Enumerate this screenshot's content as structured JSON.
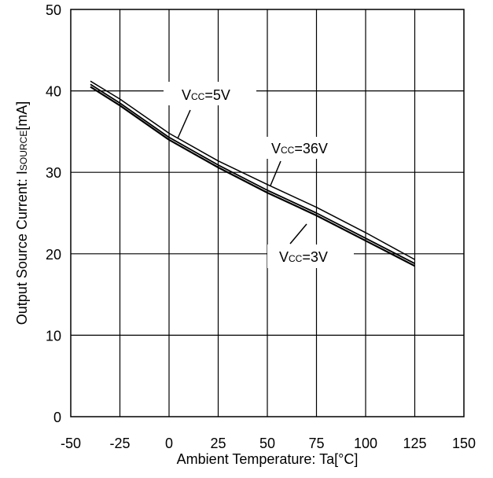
{
  "chart_data": {
    "type": "line",
    "xlabel": "Ambient Temperature: Ta[°C]",
    "ylabel_main": "Output Source Current: I",
    "ylabel_sub": "SOURCE",
    "ylabel_unit": "[mA]",
    "xlim": [
      -50,
      150
    ],
    "ylim": [
      0,
      50
    ],
    "x_ticks": [
      -50,
      -25,
      0,
      25,
      50,
      75,
      100,
      125,
      150
    ],
    "y_ticks": [
      0,
      10,
      20,
      30,
      40,
      50
    ],
    "grid": true,
    "series": [
      {
        "name": "VCC=36V",
        "x": [
          -40,
          -25,
          0,
          25,
          50,
          75,
          100,
          125
        ],
        "y": [
          41.2,
          39.0,
          34.8,
          31.4,
          28.5,
          25.7,
          22.6,
          19.3
        ]
      },
      {
        "name": "VCC=5V",
        "x": [
          -40,
          -25,
          0,
          25,
          50,
          75,
          100,
          125
        ],
        "y": [
          40.8,
          38.5,
          34.3,
          30.9,
          27.8,
          25.0,
          21.9,
          18.8
        ]
      },
      {
        "name": "VCC=3V",
        "x": [
          -40,
          -25,
          0,
          25,
          50,
          75,
          100,
          125
        ],
        "y": [
          40.5,
          38.2,
          34.0,
          30.6,
          27.5,
          24.7,
          21.6,
          18.5
        ]
      }
    ],
    "annotations": [
      {
        "main": "V",
        "sub": "CC",
        "rest": "=5V"
      },
      {
        "main": "V",
        "sub": "CC",
        "rest": "=36V"
      },
      {
        "main": "V",
        "sub": "CC",
        "rest": "=3V"
      }
    ]
  }
}
